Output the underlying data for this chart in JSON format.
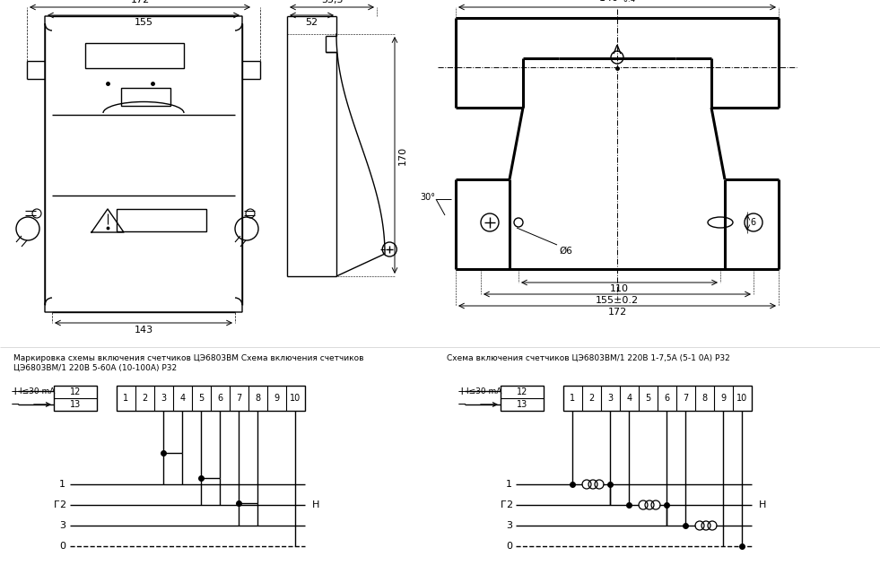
{
  "bg_color": "#ffffff",
  "line_color": "#000000",
  "fig_width": 9.81,
  "fig_height": 6.4,
  "dpi": 100,
  "title_left1": "Маркировка схемы включения счетчиков ЦЭ6803ВМ Схема включения счетчиков",
  "title_left2": "ЦЭ6803ВМ/1 220В 5-60А (10-100А) Р32",
  "title_right": "Схема включения счетчиков ЦЭ6803ВМ/1 220В 1-7,5А (5-1 0А) Р32"
}
